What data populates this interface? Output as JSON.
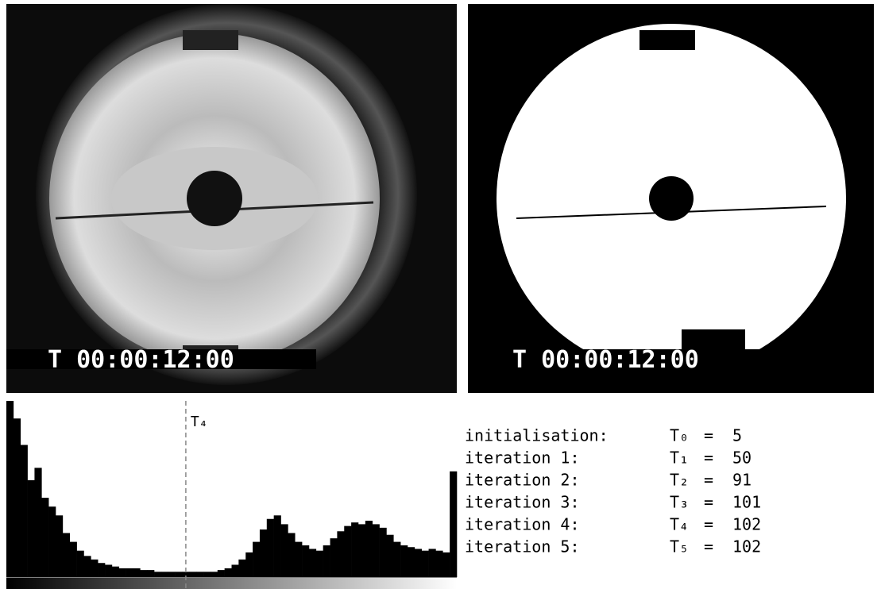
{
  "images": [
    {
      "timestamp": "T 00:00:12:00"
    },
    {
      "timestamp": "T 00:00:12:00"
    }
  ],
  "histogram": {
    "type": "histogram",
    "xlim": [
      0,
      256
    ],
    "marker_label": "T₄",
    "values": [
      100,
      90,
      75,
      55,
      62,
      45,
      40,
      35,
      25,
      20,
      15,
      12,
      10,
      8,
      7,
      6,
      5,
      5,
      5,
      4,
      4,
      3,
      3,
      3,
      3,
      3,
      3,
      3,
      3,
      3,
      4,
      5,
      7,
      10,
      14,
      20,
      27,
      33,
      35,
      30,
      25,
      20,
      18,
      16,
      15,
      18,
      22,
      26,
      29,
      31,
      30,
      32,
      30,
      28,
      24,
      20,
      18,
      17,
      16,
      15,
      16,
      15,
      14,
      60
    ]
  },
  "operator": "=",
  "iterations": [
    {
      "label": "initialisation:",
      "symbol": "T₀",
      "value": 5
    },
    {
      "label": "iteration 1:",
      "symbol": "T₁",
      "value": 50
    },
    {
      "label": "iteration 2:",
      "symbol": "T₂",
      "value": 91
    },
    {
      "label": "iteration 3:",
      "symbol": "T₃",
      "value": 101
    },
    {
      "label": "iteration 4:",
      "symbol": "T₄",
      "value": 102
    },
    {
      "label": "iteration 5:",
      "symbol": "T₅",
      "value": 102
    }
  ]
}
